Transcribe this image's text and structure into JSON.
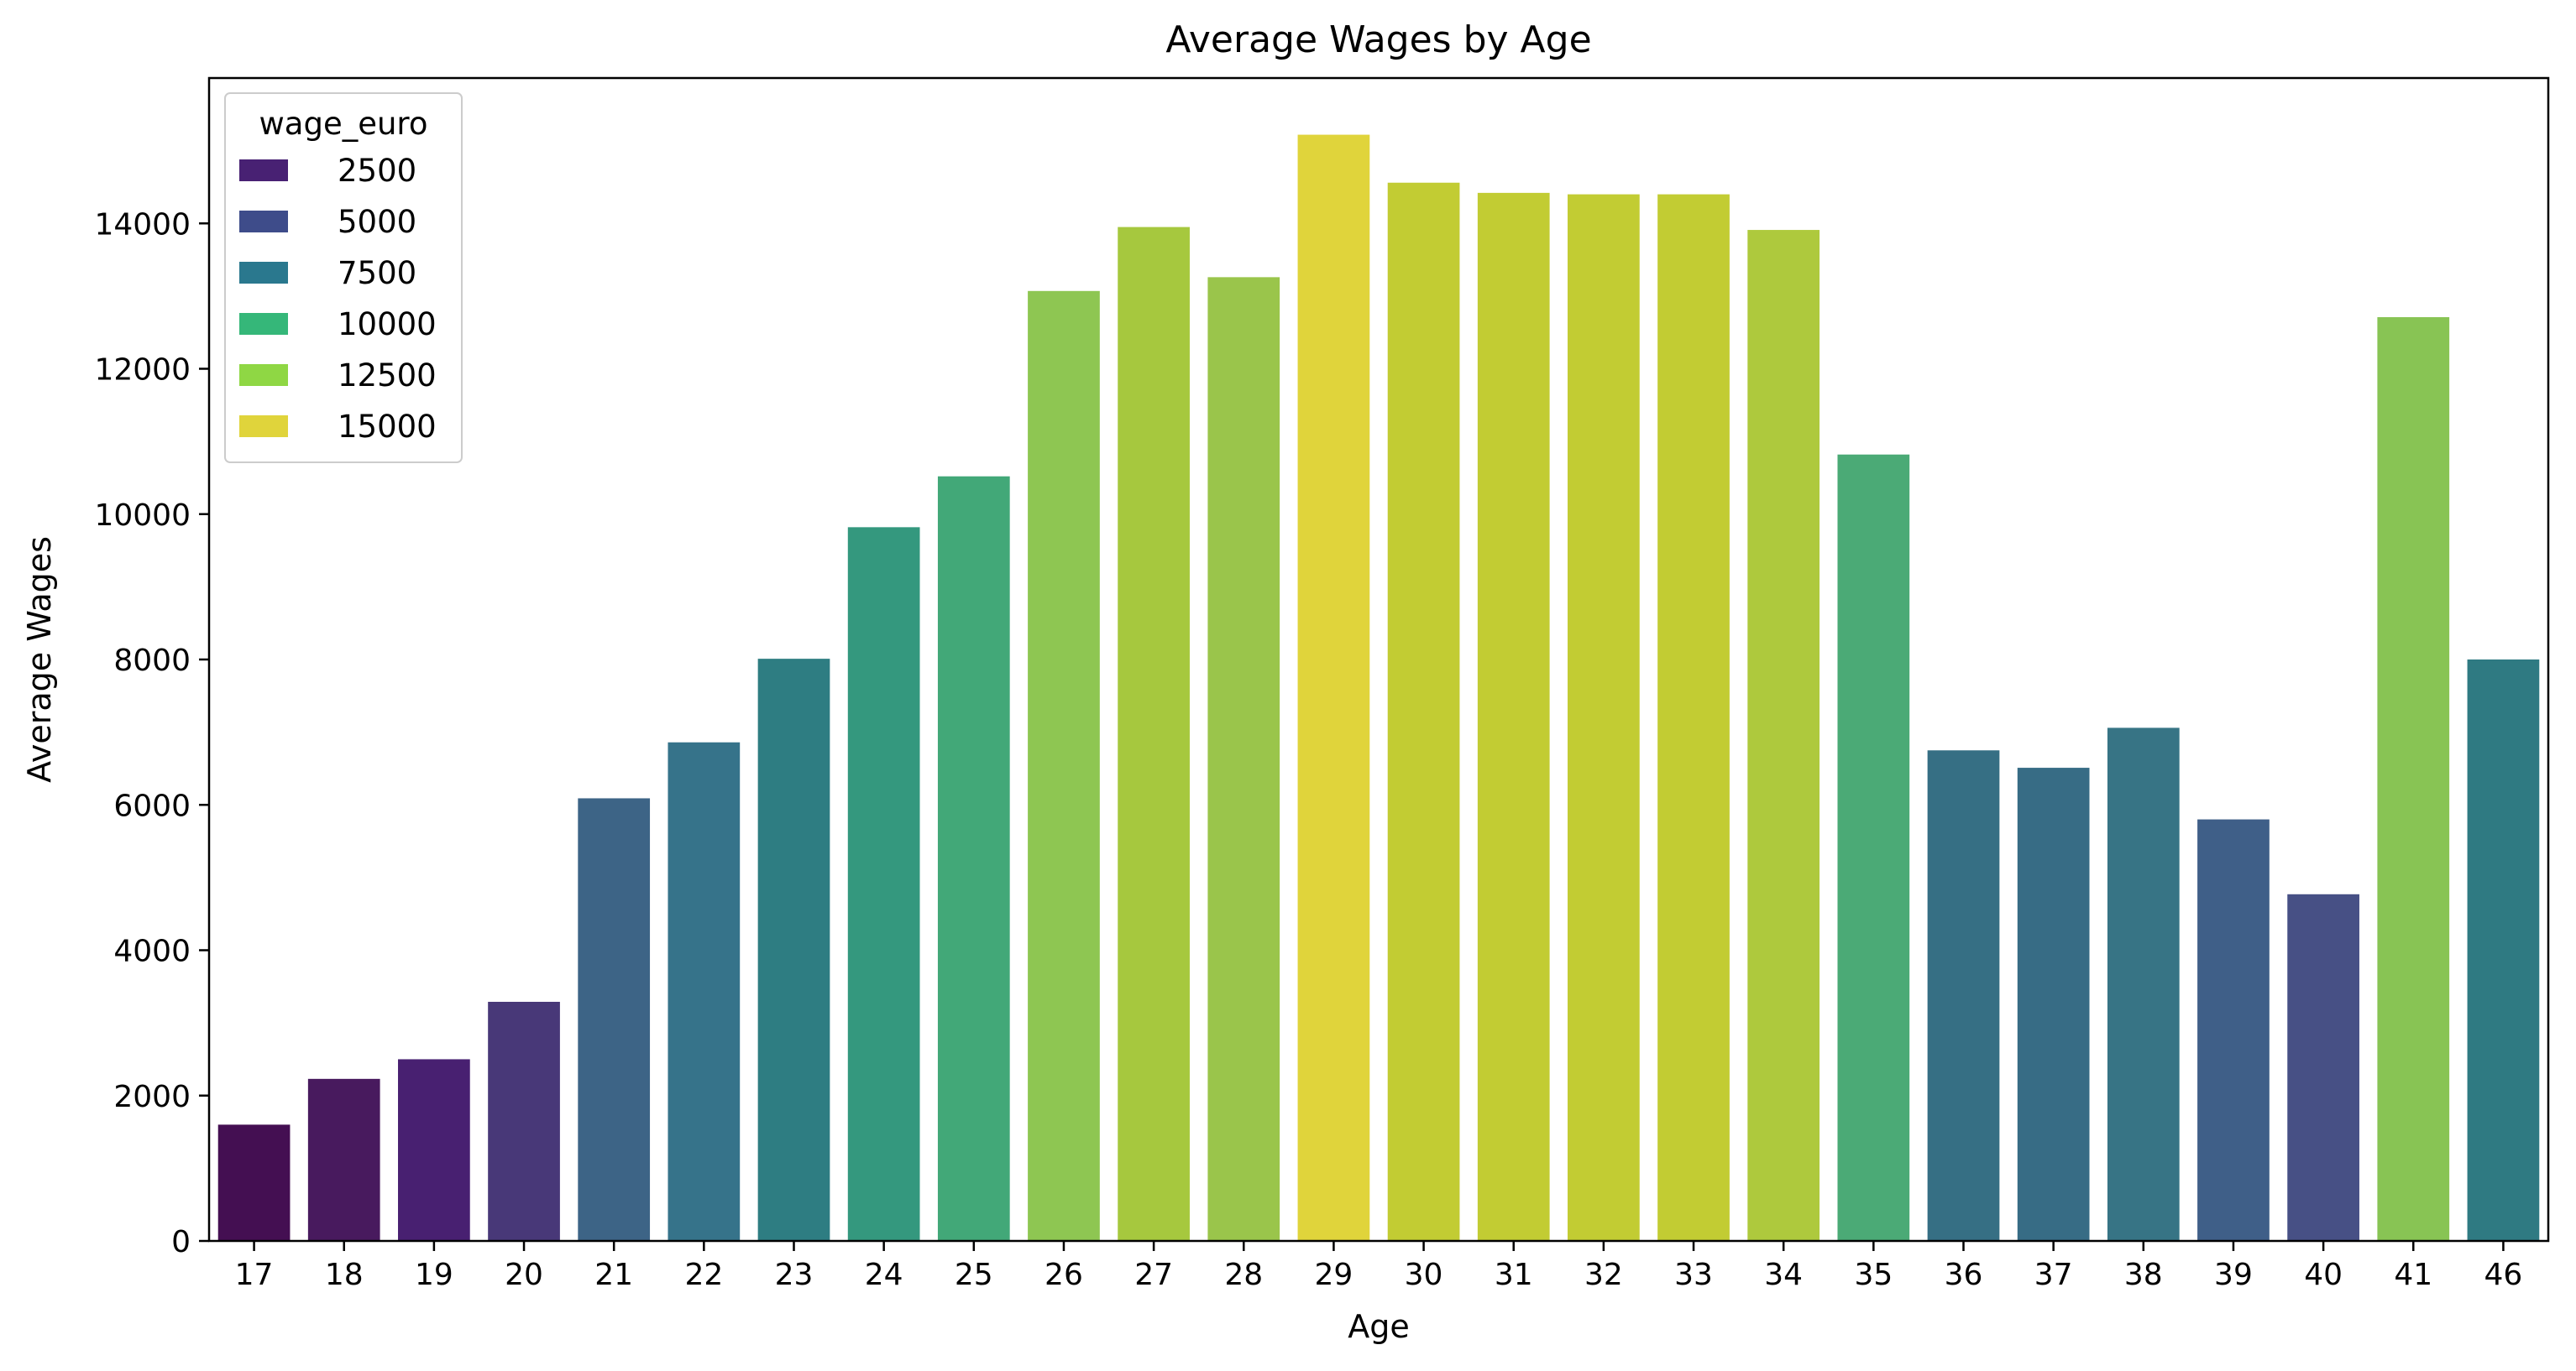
{
  "chart_data": {
    "type": "bar",
    "title": "Average Wages by Age",
    "xlabel": "Age",
    "ylabel": "Average Wages",
    "ylim": [
      0,
      16000
    ],
    "yticks": [
      0,
      2000,
      4000,
      6000,
      8000,
      10000,
      12000,
      14000
    ],
    "categories": [
      "17",
      "18",
      "19",
      "20",
      "21",
      "22",
      "23",
      "24",
      "25",
      "26",
      "27",
      "28",
      "29",
      "30",
      "31",
      "32",
      "33",
      "34",
      "35",
      "36",
      "37",
      "38",
      "39",
      "40",
      "41",
      "46"
    ],
    "values": [
      1600,
      2230,
      2500,
      3290,
      6090,
      6860,
      8010,
      9820,
      10520,
      13070,
      13950,
      13260,
      15220,
      14560,
      14420,
      14400,
      14400,
      13910,
      10820,
      6750,
      6510,
      7060,
      5800,
      4770,
      12710,
      8000
    ],
    "grid": false,
    "legend": {
      "title": "wage_euro",
      "position": "top-left",
      "entries": [
        {
          "label": "2500",
          "color": "#482173"
        },
        {
          "label": "5000",
          "color": "#3e4c8a"
        },
        {
          "label": "7500",
          "color": "#2a788e"
        },
        {
          "label": "10000",
          "color": "#35b779"
        },
        {
          "label": "12500",
          "color": "#8fd744"
        },
        {
          "label": "15000",
          "color": "#e0d43b"
        }
      ]
    },
    "bar_colors": [
      "#440f52",
      "#481a5e",
      "#482071",
      "#483878",
      "#3d6486",
      "#36738a",
      "#2e7d82",
      "#34987e",
      "#42a878",
      "#8ec652",
      "#a6c83e",
      "#9ac54b",
      "#e0d43b",
      "#c2cc33",
      "#c2cc33",
      "#c2cc33",
      "#c2cc33",
      "#aec93d",
      "#4baa76",
      "#366f84",
      "#376c85",
      "#377485",
      "#3f5f88",
      "#475085",
      "#88c454",
      "#2f7a82"
    ],
    "color_scale_name": "viridis"
  }
}
